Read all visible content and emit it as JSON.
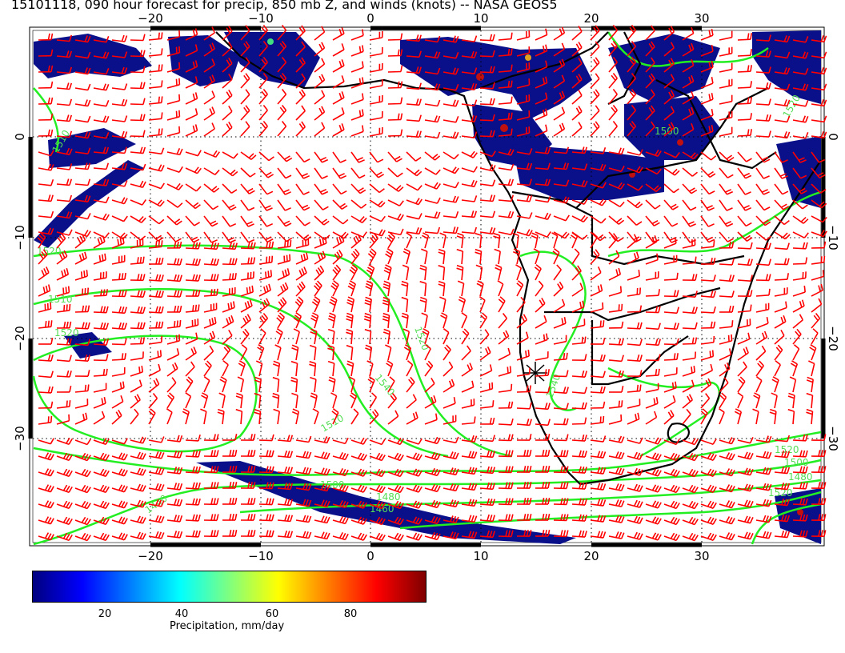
{
  "title": "15101118, 090 hour forecast for precip, 850 mb Z, and winds (knots) -- NASA GEOS5",
  "map": {
    "lon_ticks": [
      "−20",
      "−10",
      "0",
      "10",
      "20",
      "30"
    ],
    "lat_ticks": [
      "0",
      "−10",
      "−20",
      "−30"
    ],
    "contour_labels": [
      "1510",
      "1520",
      "1510",
      "1520",
      "1540",
      "1510",
      "1520",
      "1520",
      "1500",
      "1480",
      "1440",
      "1460",
      "1480",
      "1500",
      "1520",
      "1540",
      "1500",
      "1520"
    ],
    "colors": {
      "winds": "#ff0000",
      "contours": "#00ee00",
      "coastline": "#000000",
      "precip_low": "#000080",
      "precip_high": "#800000"
    }
  },
  "colorbar": {
    "ticks": [
      "20",
      "40",
      "60",
      "80"
    ],
    "label": "Precipitation, mm/day",
    "colors": [
      "#00007f",
      "#0000ff",
      "#007fff",
      "#00ffff",
      "#7fff7f",
      "#ffff00",
      "#ff7f00",
      "#ff0000",
      "#7f0000"
    ]
  }
}
